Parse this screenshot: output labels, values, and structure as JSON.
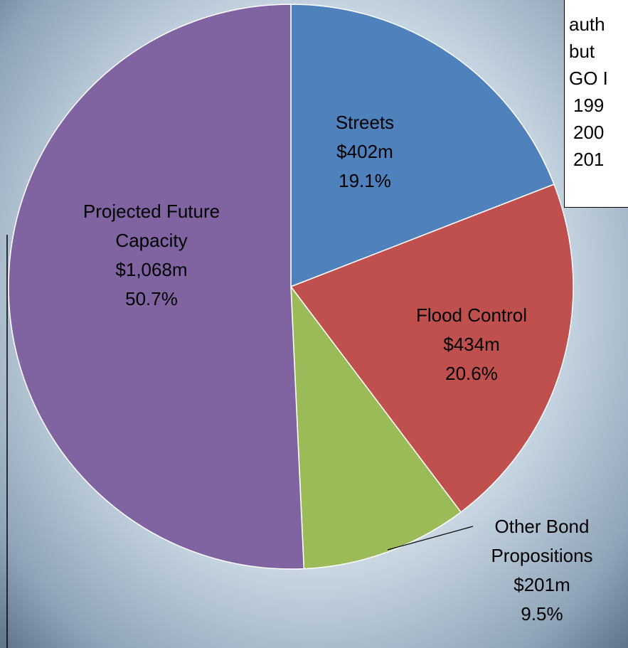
{
  "chart_data": {
    "type": "pie",
    "categories": [
      "Streets",
      "Flood Control",
      "Other Bond Propositions",
      "Projected Future Capacity"
    ],
    "values": [
      402,
      434,
      201,
      1068
    ],
    "value_labels": [
      "$402m",
      "$434m",
      "$201m",
      "$1,068m"
    ],
    "percents": [
      19.1,
      20.6,
      9.5,
      50.7
    ],
    "percent_labels": [
      "19.1%",
      "20.6%",
      "9.5%",
      "50.7%"
    ],
    "colors": [
      "#4f81bd",
      "#c0504d",
      "#9bbb59",
      "#8064a2"
    ],
    "annotation_lines": [
      "auth",
      "but",
      "GO I",
      "199",
      "200",
      "201"
    ]
  }
}
